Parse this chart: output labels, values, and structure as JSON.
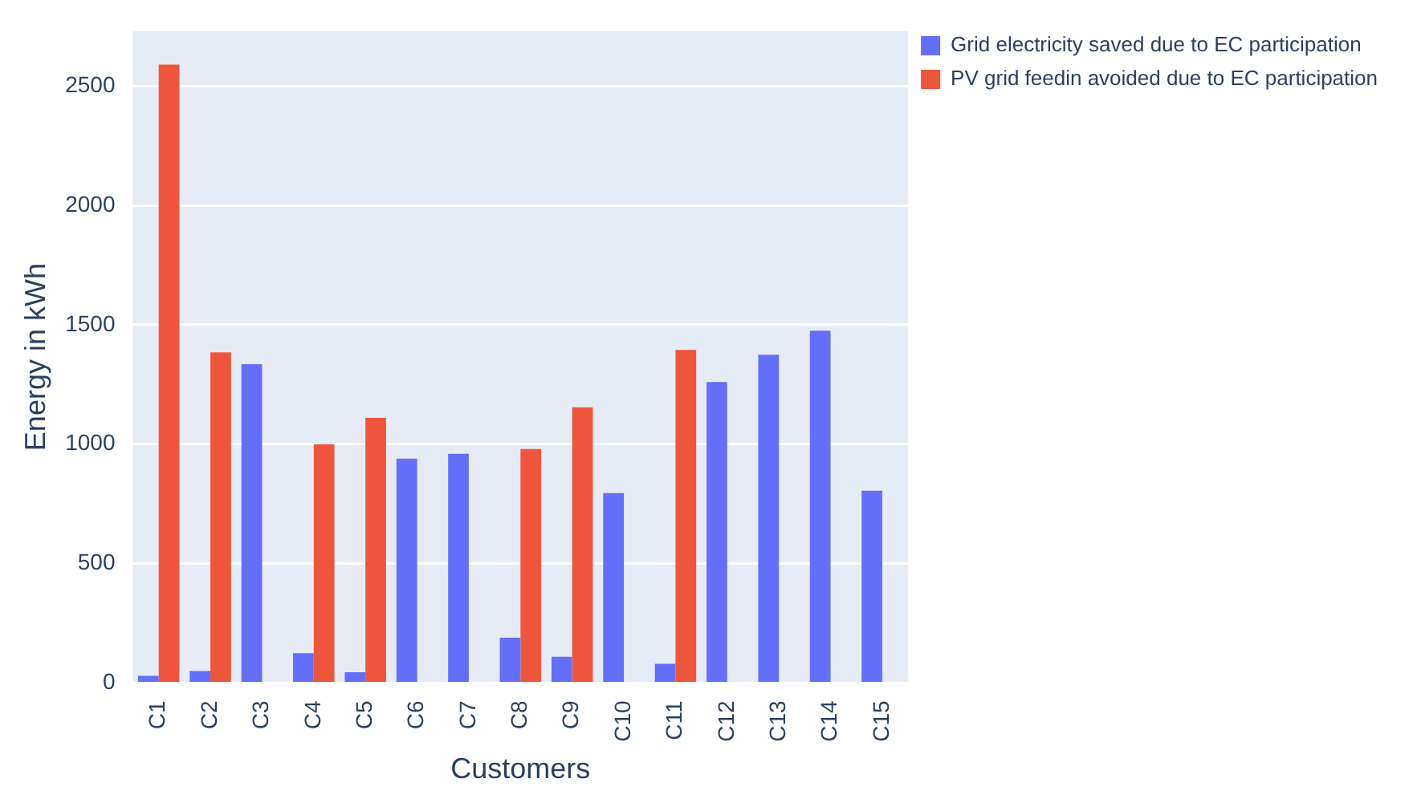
{
  "chart_data": {
    "type": "bar",
    "xlabel": "Customers",
    "ylabel": "Energy in kWh",
    "categories": [
      "C1",
      "C2",
      "C3",
      "C4",
      "C5",
      "C6",
      "C7",
      "C8",
      "C9",
      "C10",
      "C11",
      "C12",
      "C13",
      "C14",
      "C15"
    ],
    "series": [
      {
        "name": "Grid electricity saved due to EC participation",
        "color": "#636efa",
        "values": [
          30,
          50,
          1335,
          125,
          45,
          940,
          960,
          190,
          110,
          795,
          80,
          1260,
          1375,
          1475,
          805
        ]
      },
      {
        "name": "PV grid feedin avoided due to EC participation",
        "color": "#ef553b",
        "values": [
          2590,
          1385,
          0,
          1000,
          1110,
          0,
          0,
          980,
          1155,
          0,
          1395,
          0,
          0,
          0,
          0
        ]
      }
    ],
    "ylim": [
      0,
      2730
    ],
    "yticks": [
      0,
      500,
      1000,
      1500,
      2000,
      2500
    ],
    "grid": "y",
    "legend": "top right"
  }
}
